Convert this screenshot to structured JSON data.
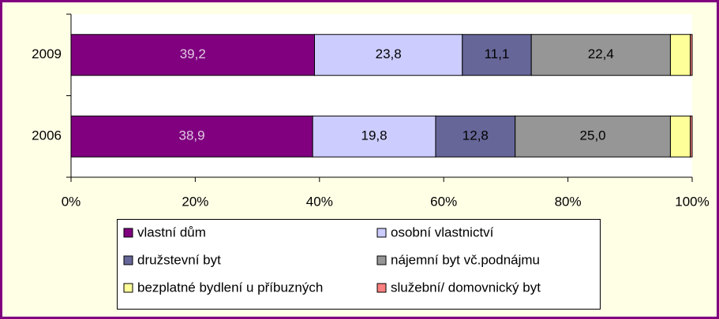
{
  "chart_data": {
    "type": "stacked-bar-horizontal",
    "categories": [
      "2009",
      "2006"
    ],
    "series": [
      {
        "name": "vlastní dům",
        "color": "#800080",
        "label_color": "#e0c8e0",
        "values": [
          39.2,
          38.9
        ],
        "value_labels": [
          "39,2",
          "38,9"
        ]
      },
      {
        "name": "osobní vlastnictví",
        "color": "#ccccff",
        "label_color": "#000000",
        "values": [
          23.8,
          19.8
        ],
        "value_labels": [
          "23,8",
          "19,8"
        ]
      },
      {
        "name": "družstevní byt",
        "color": "#666699",
        "label_color": "#000000",
        "values": [
          11.1,
          12.8
        ],
        "value_labels": [
          "11,1",
          "12,8"
        ]
      },
      {
        "name": "nájemní byt vč.podnájmu",
        "color": "#969696",
        "label_color": "#000000",
        "values": [
          22.4,
          25.0
        ],
        "value_labels": [
          "22,4",
          "25,0"
        ]
      },
      {
        "name": "bezplatné bydlení u příbuzných",
        "color": "#ffff99",
        "values": [
          3.2,
          3.2
        ]
      },
      {
        "name": "služební/ domovnický byt",
        "color": "#ff8080",
        "values": [
          0.3,
          0.3
        ]
      }
    ],
    "xlim": [
      0,
      100
    ],
    "xticks": [
      {
        "value": 0,
        "label": "0%"
      },
      {
        "value": 20,
        "label": "20%"
      },
      {
        "value": 40,
        "label": "40%"
      },
      {
        "value": 60,
        "label": "60%"
      },
      {
        "value": 80,
        "label": "80%"
      },
      {
        "value": 100,
        "label": "100%"
      }
    ]
  }
}
